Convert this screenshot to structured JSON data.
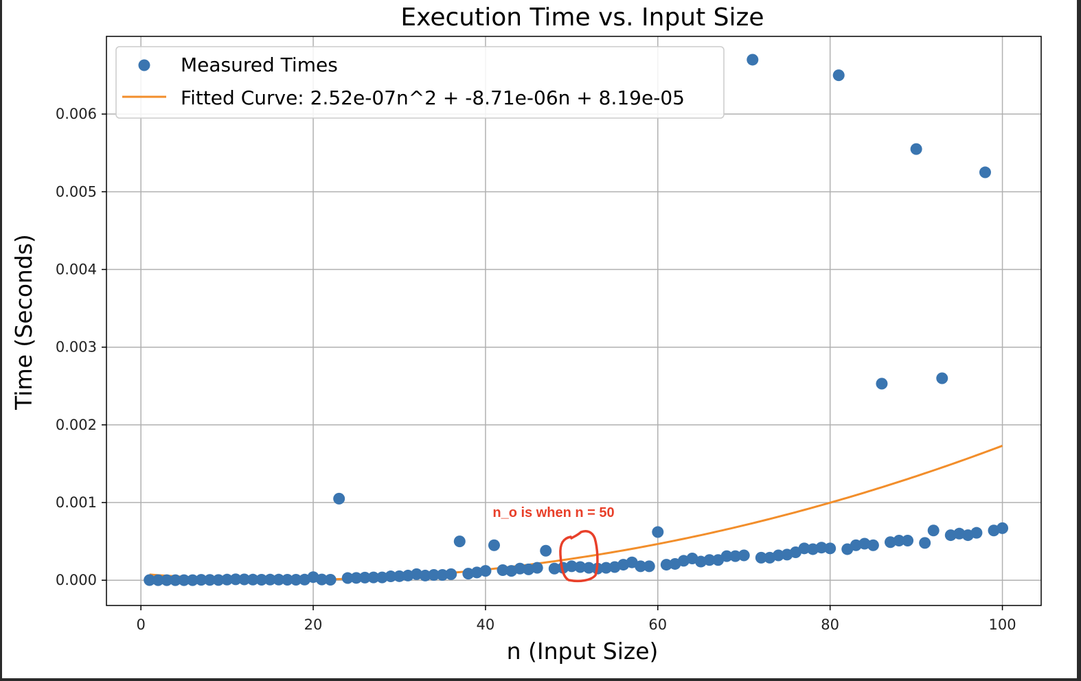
{
  "chart_data": {
    "type": "scatter",
    "title": "Execution Time vs. Input Size",
    "xlabel": "n (Input Size)",
    "ylabel": "Time (Seconds)",
    "xlim": [
      -4,
      104.5
    ],
    "ylim": [
      -0.000325,
      0.007
    ],
    "xticks": [
      0,
      20,
      40,
      60,
      80,
      100
    ],
    "xtick_labels": [
      "0",
      "20",
      "40",
      "60",
      "80",
      "100"
    ],
    "yticks": [
      0.0,
      0.001,
      0.002,
      0.003,
      0.004,
      0.005,
      0.006
    ],
    "ytick_labels": [
      "0.000",
      "0.001",
      "0.002",
      "0.003",
      "0.004",
      "0.005",
      "0.006"
    ],
    "grid": true,
    "legend_position": "top-left",
    "colors": {
      "points": "#3a75b0",
      "curve": "#f28e2b",
      "annotation": "#e8402a"
    },
    "series": [
      {
        "name": "Measured Times",
        "kind": "scatter",
        "x": [
          1,
          2,
          3,
          4,
          5,
          6,
          7,
          8,
          9,
          10,
          11,
          12,
          13,
          14,
          15,
          16,
          17,
          18,
          19,
          20,
          21,
          22,
          23,
          24,
          25,
          26,
          27,
          28,
          29,
          30,
          31,
          32,
          33,
          34,
          35,
          36,
          37,
          38,
          39,
          40,
          41,
          42,
          43,
          44,
          45,
          46,
          47,
          48,
          49,
          50,
          51,
          52,
          53,
          54,
          55,
          56,
          57,
          58,
          59,
          60,
          61,
          62,
          63,
          64,
          65,
          66,
          67,
          68,
          69,
          70,
          71,
          72,
          73,
          74,
          75,
          76,
          77,
          78,
          79,
          80,
          81,
          82,
          83,
          84,
          85,
          86,
          87,
          88,
          89,
          90,
          91,
          92,
          93,
          94,
          95,
          96,
          97,
          98,
          99,
          100
        ],
        "y": [
          2e-06,
          1e-06,
          1e-06,
          1e-06,
          1e-06,
          1e-06,
          5e-06,
          4e-06,
          3e-06,
          8e-06,
          1.2e-05,
          1.1e-05,
          8e-06,
          6e-06,
          8e-06,
          8e-06,
          6e-06,
          6e-06,
          8e-06,
          4e-05,
          1e-05,
          6e-06,
          0.00105,
          2.8e-05,
          3e-05,
          3.4e-05,
          3.6e-05,
          3.6e-05,
          5e-05,
          5.2e-05,
          6e-05,
          7.8e-05,
          6e-05,
          6.8e-05,
          6.8e-05,
          7.8e-05,
          0.0005,
          8.5e-05,
          0.0001,
          0.00012,
          0.00045,
          0.00013,
          0.00012,
          0.00015,
          0.00014,
          0.00016,
          0.00038,
          0.00015,
          0.00016,
          0.00018,
          0.00017,
          0.00016,
          0.00015,
          0.00016,
          0.00017,
          0.0002,
          0.00023,
          0.00018,
          0.00018,
          0.00062,
          0.0002,
          0.00021,
          0.00025,
          0.00028,
          0.00024,
          0.00026,
          0.00026,
          0.00031,
          0.00031,
          0.00032,
          0.0067,
          0.00029,
          0.00029,
          0.00032,
          0.00033,
          0.00036,
          0.00041,
          0.0004,
          0.00042,
          0.00041,
          0.0065,
          0.0004,
          0.00045,
          0.00047,
          0.00045,
          0.00253,
          0.00049,
          0.00051,
          0.00051,
          0.00555,
          0.00048,
          0.00064,
          0.0026,
          0.00058,
          0.0006,
          0.00058,
          0.00061,
          0.00525,
          0.00064,
          0.00067
        ]
      },
      {
        "name": "Fitted Curve: 2.52e-07n^2 + -8.71e-06n + 8.19e-05",
        "kind": "line",
        "coefficients": {
          "a": 2.52e-07,
          "b": -8.71e-06,
          "c": 8.19e-05
        },
        "x_range": [
          1,
          100
        ]
      }
    ],
    "annotation": {
      "text": "n_o  is when n = 50",
      "x": 50,
      "y": 0.00085,
      "highlight_n": 50
    }
  }
}
